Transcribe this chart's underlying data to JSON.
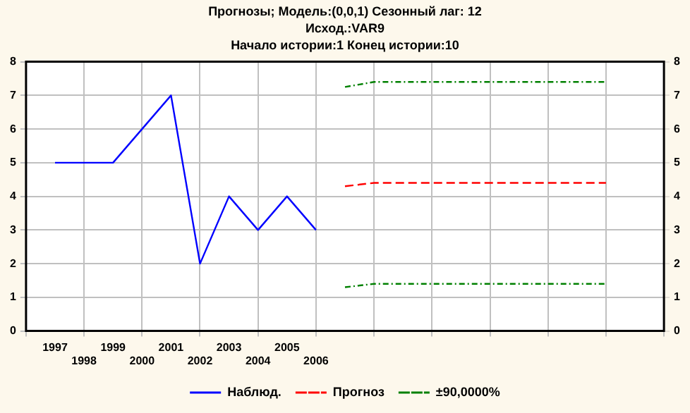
{
  "chart_data": {
    "type": "line",
    "title": "Прогнозы; Модель:(0,0,1) Сезонный лаг: 12",
    "subtitle": "Исход.:VAR9",
    "annotations": [
      "Начало истории:1      Конец истории:10"
    ],
    "categories": [
      null,
      "1997",
      "1998",
      "1999",
      "2000",
      "2001",
      "2002",
      "2003",
      "2004",
      "2005",
      "2006",
      null,
      null,
      null,
      null,
      null,
      null,
      null,
      null,
      null,
      null,
      null,
      null
    ],
    "series": [
      {
        "name": "Наблюд.",
        "color": "#0000ff",
        "line_style": "solid",
        "values": [
          null,
          5,
          5,
          5,
          6,
          7,
          2,
          4,
          3,
          4,
          3,
          null,
          null,
          null,
          null,
          null,
          null,
          null,
          null,
          null,
          null,
          null,
          null
        ]
      },
      {
        "name": "Прогноз",
        "color": "#ff0000",
        "line_style": "dashed",
        "values": [
          null,
          null,
          null,
          null,
          null,
          null,
          null,
          null,
          null,
          null,
          null,
          4.3,
          4.4,
          4.4,
          4.4,
          4.4,
          4.4,
          4.4,
          4.4,
          4.4,
          4.4,
          null,
          null
        ]
      },
      {
        "name": "±90,0000%",
        "color": "#008000",
        "line_style": "dotted",
        "values": [
          null,
          null,
          null,
          null,
          null,
          null,
          null,
          null,
          null,
          null,
          null,
          7.25,
          7.4,
          7.4,
          7.4,
          7.4,
          7.4,
          7.4,
          7.4,
          7.4,
          7.4,
          null,
          null
        ]
      },
      {
        "color": "#008000",
        "line_style": "dotted",
        "values": [
          null,
          null,
          null,
          null,
          null,
          null,
          null,
          null,
          null,
          null,
          null,
          1.3,
          1.4,
          1.4,
          1.4,
          1.4,
          1.4,
          1.4,
          1.4,
          1.4,
          1.4,
          null,
          null
        ]
      }
    ],
    "ylim": [
      0,
      8
    ],
    "yticks": [
      0,
      1,
      2,
      3,
      4,
      5,
      6,
      7,
      8
    ],
    "y2lim": [
      0,
      8
    ],
    "y2ticks": [
      0,
      1,
      2,
      3,
      4,
      5,
      6,
      7,
      8
    ],
    "grid": true,
    "legend": "bottom",
    "marker": "none"
  }
}
